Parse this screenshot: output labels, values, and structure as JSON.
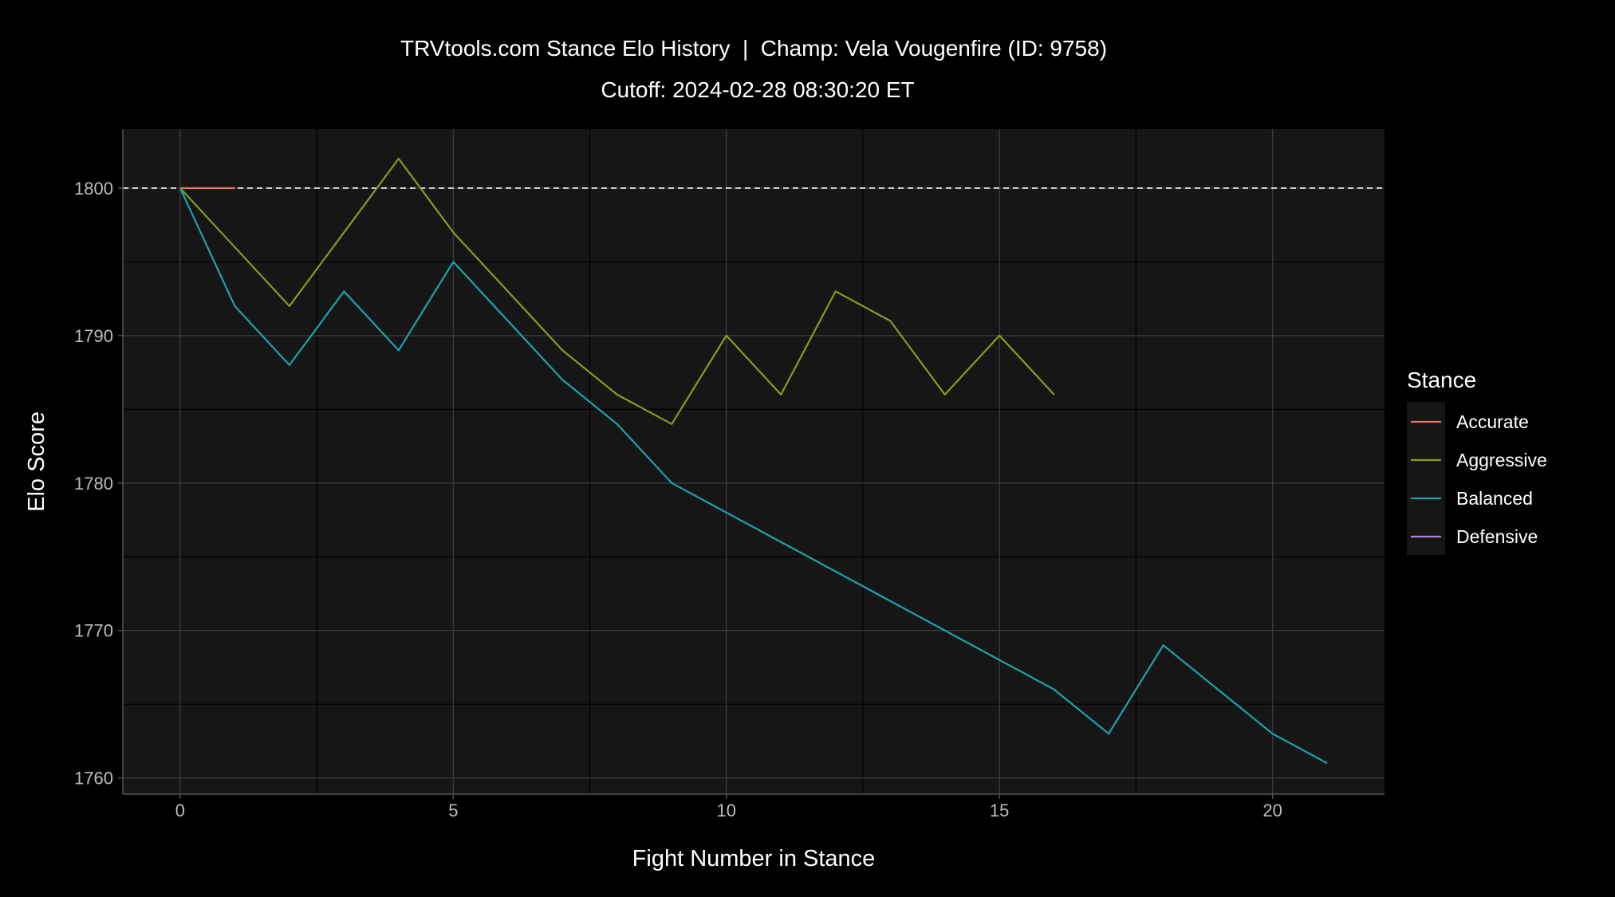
{
  "chart_data": {
    "type": "line",
    "title": "TRVtools.com Stance Elo History  |  Champ: Vela Vougenfire (ID: 9758)",
    "subtitle": "Cutoff: 2024-02-28 08:30:20 ET",
    "xlabel": "Fight Number in Stance",
    "ylabel": "Elo Score",
    "xlim": [
      -1.05,
      22.05
    ],
    "ylim": [
      1758.9,
      1804.0
    ],
    "x_ticks": [
      0,
      5,
      10,
      15,
      20
    ],
    "y_ticks": [
      1760,
      1770,
      1780,
      1790,
      1800
    ],
    "reference_line": {
      "y": 1800,
      "style": "dashed",
      "color": "#ffffff"
    },
    "grid": true,
    "legend": {
      "title": "Stance",
      "position": "right"
    },
    "series": [
      {
        "name": "Accurate",
        "color": "#e8786b",
        "x": [
          0,
          1
        ],
        "y": [
          1800,
          1800
        ]
      },
      {
        "name": "Aggressive",
        "color": "#869d1a",
        "x": [
          0,
          1,
          2,
          3,
          4,
          5,
          6,
          7,
          8,
          9,
          10,
          11,
          12,
          13,
          14,
          15,
          16
        ],
        "y": [
          1800,
          1796,
          1792,
          1797,
          1802,
          1797,
          1793,
          1789,
          1786,
          1784,
          1790,
          1786,
          1793,
          1791,
          1786,
          1790,
          1786
        ]
      },
      {
        "name": "Balanced",
        "color": "#1aa3ad",
        "x": [
          0,
          1,
          2,
          3,
          4,
          5,
          6,
          7,
          8,
          9,
          10,
          11,
          12,
          13,
          14,
          15,
          16,
          17,
          18,
          19,
          20,
          21
        ],
        "y": [
          1800,
          1792,
          1788,
          1793,
          1789,
          1795,
          1791,
          1787,
          1784,
          1780,
          1778,
          1776,
          1774,
          1772,
          1770,
          1768,
          1766,
          1763,
          1769,
          1766,
          1763,
          1761
        ]
      },
      {
        "name": "Defensive",
        "color": "#b07fd8",
        "x": [],
        "y": []
      }
    ]
  }
}
